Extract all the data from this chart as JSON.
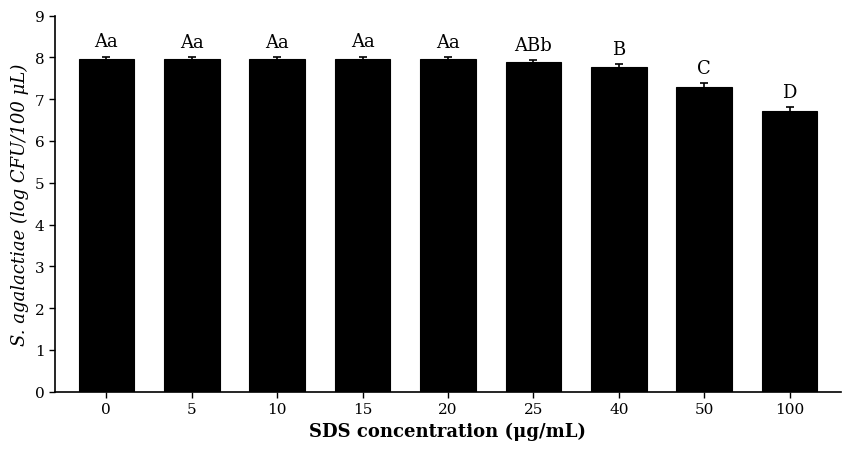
{
  "categories": [
    "0",
    "5",
    "10",
    "15",
    "20",
    "25",
    "40",
    "50",
    "100"
  ],
  "values": [
    7.97,
    7.97,
    7.96,
    7.97,
    7.96,
    7.88,
    7.77,
    7.28,
    6.72
  ],
  "errors": [
    0.05,
    0.04,
    0.05,
    0.05,
    0.04,
    0.06,
    0.07,
    0.1,
    0.09
  ],
  "labels": [
    "Aa",
    "Aa",
    "Aa",
    "Aa",
    "Aa",
    "ABb",
    "B",
    "C",
    "D"
  ],
  "bar_color": "#000000",
  "edge_color": "#000000",
  "bar_width": 0.65,
  "xlabel": "SDS concentration (μg/mL)",
  "ylabel": "S. agalactiae (log CFU/100 μL)",
  "ylim": [
    0,
    9
  ],
  "yticks": [
    0,
    1,
    2,
    3,
    4,
    5,
    6,
    7,
    8,
    9
  ],
  "title_fontsize": 13,
  "label_fontsize": 13,
  "tick_fontsize": 11,
  "annotation_fontsize": 13,
  "background_color": "#ffffff"
}
